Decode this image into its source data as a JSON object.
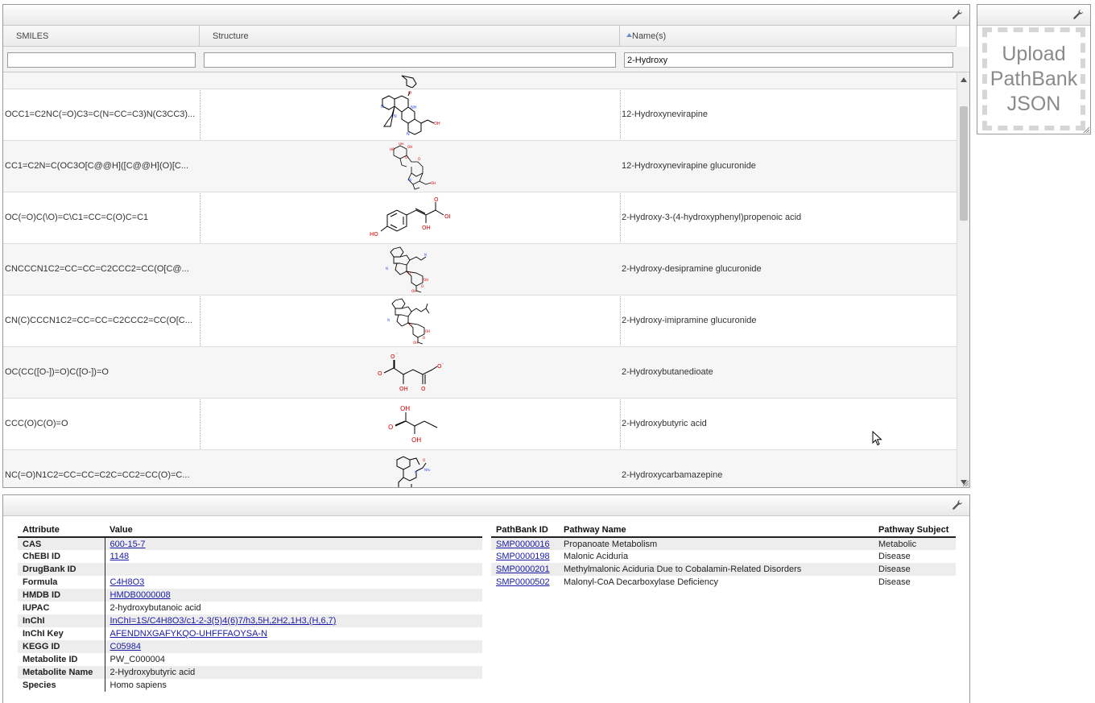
{
  "grid": {
    "columns": [
      {
        "label": "SMILES"
      },
      {
        "label": "Structure"
      },
      {
        "label": "Name(s)",
        "sort": "ascending"
      }
    ],
    "filters": {
      "smiles": "",
      "structure": "",
      "name": "2-Hydroxy"
    },
    "rows": [
      {
        "smiles": "",
        "name": ""
      },
      {
        "smiles": "OCC1=C2NC(=O)C3=C(N=CC=C3)N(C3CC3)...",
        "name": "12-Hydroxynevirapine"
      },
      {
        "smiles": "CC1=C2N=C(OC3O[C@@H]([C@@H](O)[C...",
        "name": "12-Hydroxynevirapine glucuronide"
      },
      {
        "smiles": "OC(=O)C(\\O)=C\\C1=CC=C(O)C=C1",
        "name": "2-Hydroxy-3-(4-hydroxyphenyl)propenoic acid"
      },
      {
        "smiles": "CNCCCN1C2=CC=CC=C2CCC2=CC(O[C@...",
        "name": "2-Hydroxy-desipramine glucuronide"
      },
      {
        "smiles": "CN(C)CCCN1C2=CC=CC=C2CCC2=CC(O[C...",
        "name": "2-Hydroxy-imipramine glucuronide"
      },
      {
        "smiles": "OC(CC([O-])=O)C([O-])=O",
        "name": "2-Hydroxybutanedioate"
      },
      {
        "smiles": "CCC(O)C(O)=O",
        "name": "2-Hydroxybutyric acid"
      },
      {
        "smiles": "NC(=O)N1C2=CC=CC=C2C=CC2=CC(O)=C...",
        "name": "2-Hydroxycarbamazepine"
      }
    ]
  },
  "upload": {
    "line1": "Upload",
    "line2": "PathBank",
    "line3": "JSON"
  },
  "attributes": {
    "header_attr": "Attribute",
    "header_value": "Value",
    "rows": [
      {
        "key": "CAS",
        "value": "600-15-7",
        "link": true
      },
      {
        "key": "ChEBI ID",
        "value": "1148",
        "link": true
      },
      {
        "key": "DrugBank ID",
        "value": "",
        "link": false
      },
      {
        "key": "Formula",
        "value": "C4H8O3",
        "link": true
      },
      {
        "key": "HMDB ID",
        "value": "HMDB0000008",
        "link": true
      },
      {
        "key": "IUPAC",
        "value": "2-hydroxybutanoic acid",
        "link": false
      },
      {
        "key": "InChI",
        "value": "InChI=1S/C4H8O3/c1-2-3(5)4(6)7/h3,5H,2H2,1H3,(H,6,7)",
        "link": true
      },
      {
        "key": "InChI Key",
        "value": "AFENDNXGAFYKQO-UHFFFAOYSA-N",
        "link": true
      },
      {
        "key": "KEGG ID",
        "value": "C05984",
        "link": true
      },
      {
        "key": "Metabolite ID",
        "value": "PW_C000004",
        "link": false
      },
      {
        "key": "Metabolite Name",
        "value": "2-Hydroxybutyric acid",
        "link": false
      },
      {
        "key": "Species",
        "value": "Homo sapiens",
        "link": false
      }
    ]
  },
  "pathways": {
    "header_id": "PathBank ID",
    "header_name": "Pathway Name",
    "header_subject": "Pathway Subject",
    "rows": [
      {
        "id": "SMP0000016",
        "name": "Propanoate Metabolism",
        "subject": "Metabolic"
      },
      {
        "id": "SMP0000198",
        "name": "Malonic Aciduria",
        "subject": "Disease"
      },
      {
        "id": "SMP0000201",
        "name": "Methylmalonic Aciduria Due to Cobalamin-Related Disorders",
        "subject": "Disease"
      },
      {
        "id": "SMP0000502",
        "name": "Malonyl-CoA Decarboxylase Deficiency",
        "subject": "Disease"
      }
    ]
  },
  "icons": {
    "settings": "wrench-icon",
    "sort": "sort-ascending-icon",
    "scroll_up": "scroll-up-arrow-icon",
    "scroll_down": "scroll-down-arrow-icon",
    "resize": "resize-handle-icon",
    "cursor": "mouse-pointer-icon"
  },
  "colors": {
    "link": "#1a1aa6",
    "atom_oxygen": "#e00000",
    "atom_nitrogen": "#3050f8",
    "bond": "#000000"
  }
}
